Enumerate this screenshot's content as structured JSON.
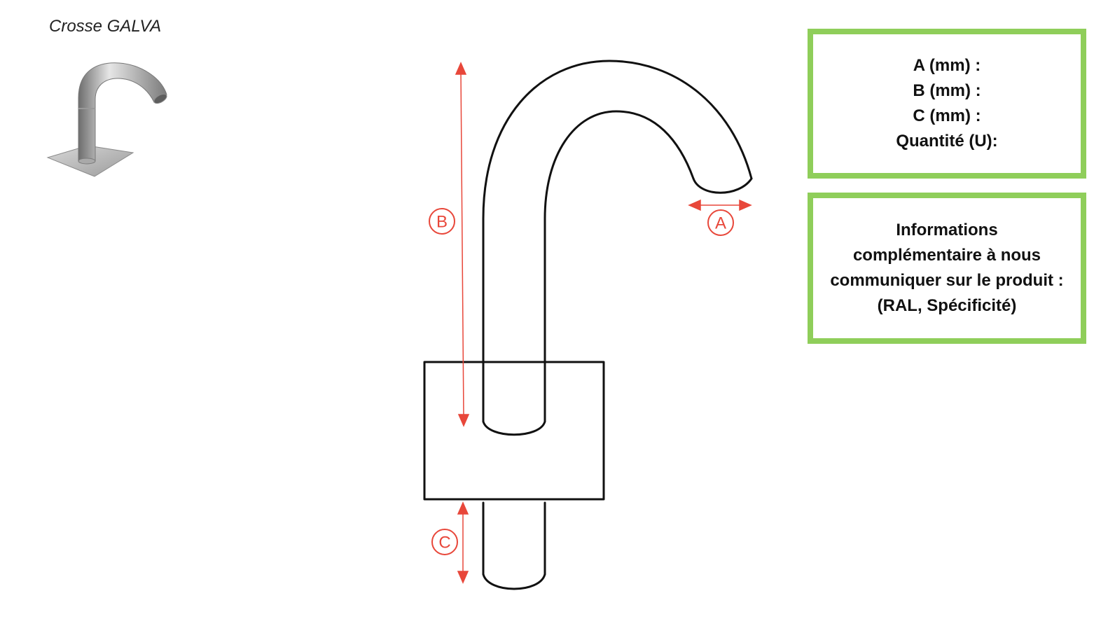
{
  "product": {
    "title": "Crosse GALVA"
  },
  "dimension_labels": {
    "a": "A",
    "b": "B",
    "c": "C"
  },
  "dimensions_box": {
    "lines": [
      "A (mm) :",
      "B (mm) :",
      "C (mm) :",
      "Quantité (U):"
    ]
  },
  "notes_box": {
    "lines": [
      "Informations",
      "complémentaire à nous",
      "communiquer sur le produit :",
      "(RAL, Spécificité)"
    ]
  },
  "colors": {
    "accent_green": "#8fce5a",
    "dimension_red": "#e8473a",
    "outline": "#111111"
  }
}
